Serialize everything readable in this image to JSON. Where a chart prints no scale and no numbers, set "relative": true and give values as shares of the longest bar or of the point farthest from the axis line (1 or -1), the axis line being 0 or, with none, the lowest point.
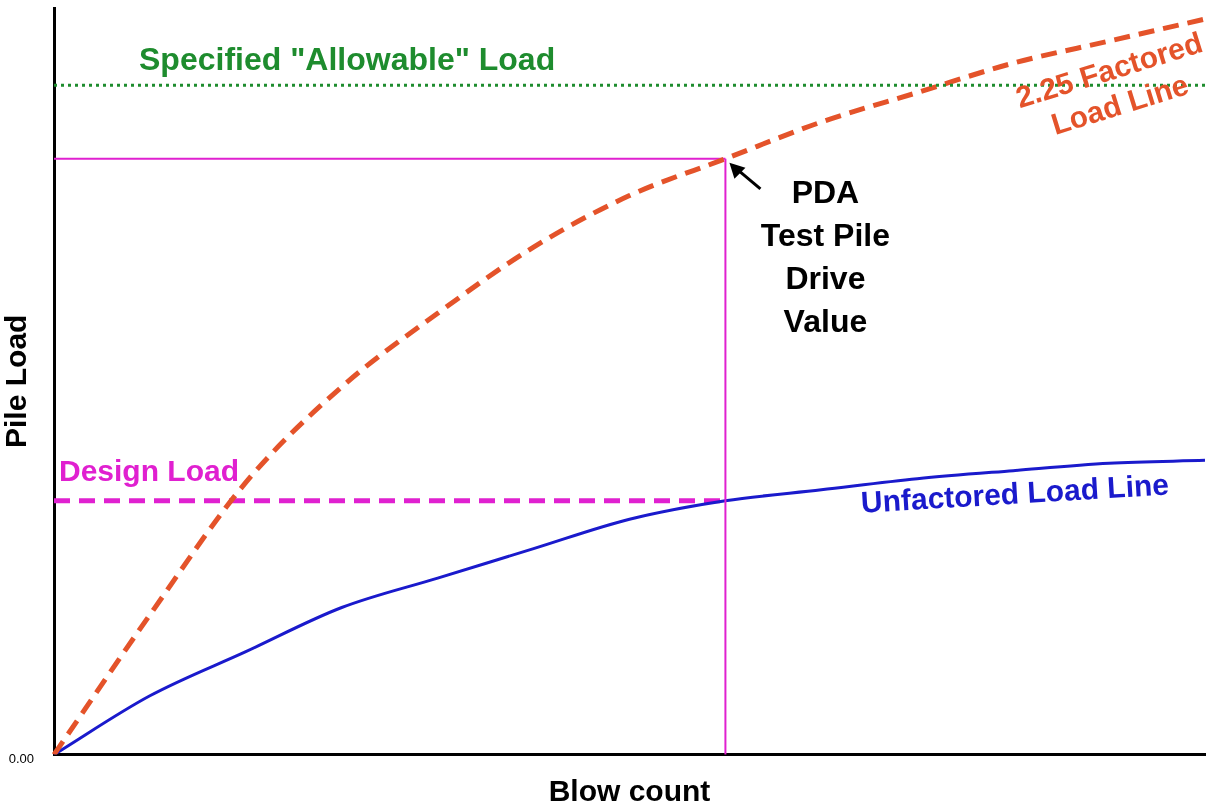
{
  "chart_data": {
    "type": "line",
    "relative": true,
    "xlabel": "Blow count",
    "ylabel": "Pile Load",
    "legend": false,
    "marker": "none",
    "categories": [
      null,
      null,
      null,
      null,
      null,
      null,
      null,
      null,
      null,
      null,
      null,
      null,
      null
    ],
    "series": [
      {
        "name": "2.25 Factored Load Line",
        "color": "#e4532a",
        "line_style": "dashed",
        "values": [
          0,
          0.19,
          0.37,
          0.5,
          0.6,
          0.69,
          0.76,
          0.81,
          0.86,
          0.9,
          0.94,
          0.97,
          1.0
        ]
      },
      {
        "name": "Unfactored Load Line",
        "color": "#1a1acc",
        "line_style": "solid",
        "values": [
          0,
          0.08,
          0.14,
          0.2,
          0.24,
          0.28,
          0.32,
          0.345,
          0.36,
          0.375,
          0.386,
          0.396,
          0.4
        ]
      },
      {
        "name": "Design Load",
        "color": "#e020d0",
        "line_style": "dashed",
        "values": [
          0.345,
          0.345,
          0.345,
          0.345,
          0.345,
          0.345,
          0.345,
          0.345,
          null,
          null,
          null,
          null,
          null
        ]
      },
      {
        "color": "#e020d0",
        "line_style": "solid",
        "values": [
          0.81,
          0.81,
          0.81,
          0.81,
          0.81,
          0.81,
          0.81,
          0.81,
          null,
          null,
          null,
          null,
          null
        ]
      }
    ],
    "ref_lines": [
      {
        "axis": "y",
        "value": 0.91,
        "label": "Specified \"Allowable\" Load",
        "color": "#1e8c2e",
        "line_style": "dotted"
      }
    ],
    "annotations": [
      "PDA Test Pile Drive Value",
      "0.00"
    ]
  }
}
